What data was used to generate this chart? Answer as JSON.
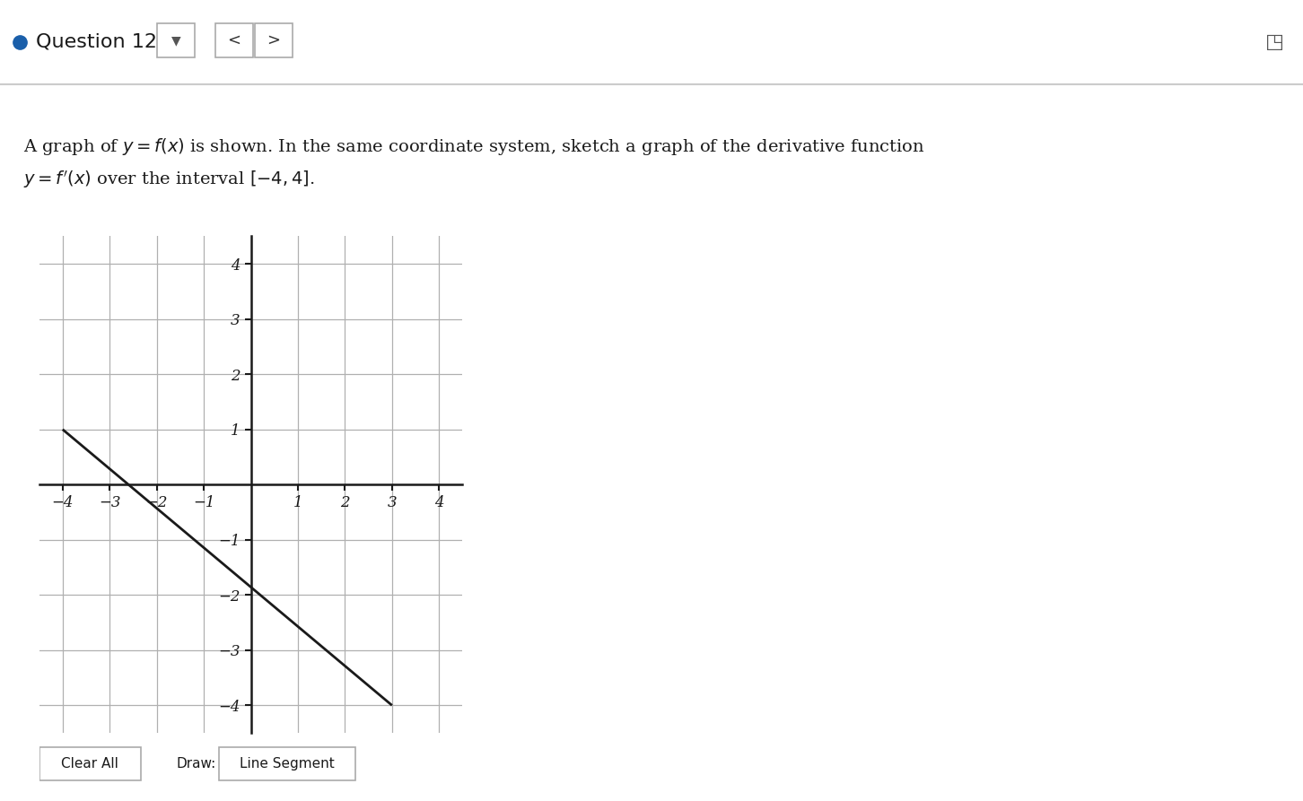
{
  "title_line1": "A graph of $y = f(x)$ is shown. In the same coordinate system, sketch a graph of the derivative function",
  "title_line2": "$y = f'(x)$ over the interval $[ - 4, 4]$.",
  "header_text": "Question 12",
  "xlim": [
    -4.5,
    4.5
  ],
  "ylim": [
    -4.5,
    4.5
  ],
  "xticks": [
    -4,
    -3,
    -2,
    -1,
    0,
    1,
    2,
    3,
    4
  ],
  "yticks": [
    -4,
    -3,
    -2,
    -1,
    0,
    1,
    2,
    3,
    4
  ],
  "line_x": [
    -4,
    3
  ],
  "line_y": [
    1,
    -4
  ],
  "bg_color": "#ffffff",
  "line_color": "#1a1a1a",
  "grid_color": "#b0b0b0",
  "axis_color": "#1a1a1a",
  "tick_label_color": "#1a1a1a",
  "header_bg": "#f8f8f8",
  "header_border": "#cccccc",
  "button_clear": "Clear All",
  "button_draw": "Draw:",
  "button_segment": "Line Segment"
}
